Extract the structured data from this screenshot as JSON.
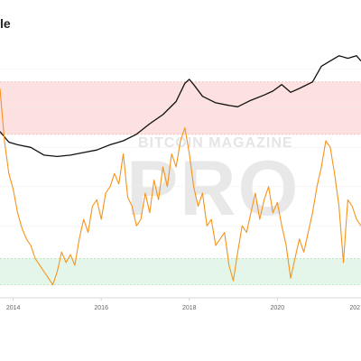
{
  "page": {
    "title": "le"
  },
  "watermark": {
    "brand": "BITCOIN MAGAZINE",
    "product": "PRO"
  },
  "colors": {
    "price_line": "#111111",
    "oscillator_line": "#f7931a",
    "red_band": "#fde0e0",
    "green_band": "#e4f6e9",
    "grid": "#eeeeee"
  },
  "chart_data": {
    "type": "line",
    "title": "le",
    "xlabel": "",
    "ylabel": "",
    "x_ticks": [
      "2014",
      "2016",
      "2018",
      "2020",
      "202"
    ],
    "xlim": [
      2013.7,
      2021.9
    ],
    "grid": true,
    "bands": [
      {
        "name": "",
        "color": "#fde0e0",
        "ylim": [
          0.6,
          1.0
        ]
      },
      {
        "name": "",
        "color": "#e4f6e9",
        "ylim": [
          -0.55,
          -0.35
        ]
      }
    ],
    "series": [
      {
        "name": "",
        "color": "#111111",
        "x": [
          2013.7,
          2013.9,
          2014.1,
          2014.4,
          2014.7,
          2015.0,
          2015.3,
          2015.6,
          2015.9,
          2016.2,
          2016.5,
          2016.8,
          2017.1,
          2017.4,
          2017.7,
          2017.9,
          2018.0,
          2018.1,
          2018.3,
          2018.6,
          2018.9,
          2019.1,
          2019.4,
          2019.7,
          2019.9,
          2020.1,
          2020.3,
          2020.5,
          2020.8,
          2021.0,
          2021.2,
          2021.4,
          2021.6,
          2021.8,
          2021.9
        ],
        "y": [
          0.62,
          0.54,
          0.52,
          0.5,
          0.44,
          0.43,
          0.44,
          0.46,
          0.48,
          0.52,
          0.55,
          0.6,
          0.68,
          0.75,
          0.85,
          0.99,
          1.02,
          0.98,
          0.89,
          0.84,
          0.82,
          0.81,
          0.86,
          0.9,
          0.93,
          0.98,
          0.92,
          0.95,
          1.0,
          1.12,
          1.16,
          1.2,
          1.18,
          1.2,
          1.16
        ]
      },
      {
        "name": "",
        "color": "#f7931a",
        "x": [
          2013.7,
          2013.8,
          2013.9,
          2014.0,
          2014.1,
          2014.2,
          2014.3,
          2014.4,
          2014.5,
          2014.6,
          2014.7,
          2014.8,
          2014.9,
          2015.0,
          2015.1,
          2015.2,
          2015.3,
          2015.4,
          2015.5,
          2015.6,
          2015.7,
          2015.8,
          2015.9,
          2016.0,
          2016.1,
          2016.2,
          2016.3,
          2016.4,
          2016.5,
          2016.6,
          2016.7,
          2016.8,
          2016.9,
          2017.0,
          2017.1,
          2017.2,
          2017.3,
          2017.4,
          2017.5,
          2017.6,
          2017.7,
          2017.8,
          2017.9,
          2018.0,
          2018.1,
          2018.2,
          2018.3,
          2018.4,
          2018.5,
          2018.6,
          2018.7,
          2018.8,
          2018.9,
          2019.0,
          2019.1,
          2019.2,
          2019.3,
          2019.4,
          2019.5,
          2019.6,
          2019.7,
          2019.8,
          2019.9,
          2020.0,
          2020.1,
          2020.2,
          2020.3,
          2020.4,
          2020.5,
          2020.6,
          2020.7,
          2020.8,
          2020.9,
          2021.0,
          2021.1,
          2021.2,
          2021.3,
          2021.4,
          2021.5,
          2021.6,
          2021.7,
          2021.8,
          2021.9
        ],
        "y": [
          0.95,
          0.55,
          0.3,
          0.18,
          0.0,
          -0.12,
          -0.2,
          -0.25,
          -0.35,
          -0.4,
          -0.45,
          -0.5,
          -0.55,
          -0.45,
          -0.3,
          -0.38,
          -0.32,
          -0.4,
          -0.2,
          -0.05,
          -0.15,
          0.05,
          0.1,
          -0.05,
          0.15,
          0.2,
          0.3,
          0.22,
          0.45,
          0.12,
          0.05,
          -0.1,
          -0.05,
          0.15,
          0.0,
          0.25,
          0.1,
          0.35,
          0.2,
          0.45,
          0.35,
          0.55,
          0.65,
          0.45,
          0.2,
          0.05,
          0.15,
          -0.1,
          -0.05,
          -0.25,
          -0.2,
          -0.15,
          -0.4,
          -0.52,
          -0.3,
          -0.1,
          -0.15,
          0.0,
          0.15,
          -0.05,
          0.1,
          0.2,
          0.0,
          0.08,
          -0.1,
          -0.25,
          -0.5,
          -0.35,
          -0.2,
          -0.3,
          -0.15,
          0.0,
          0.2,
          0.35,
          0.55,
          0.5,
          0.3,
          0.05,
          -0.38,
          0.1,
          0.05,
          -0.05,
          -0.1
        ]
      }
    ]
  }
}
